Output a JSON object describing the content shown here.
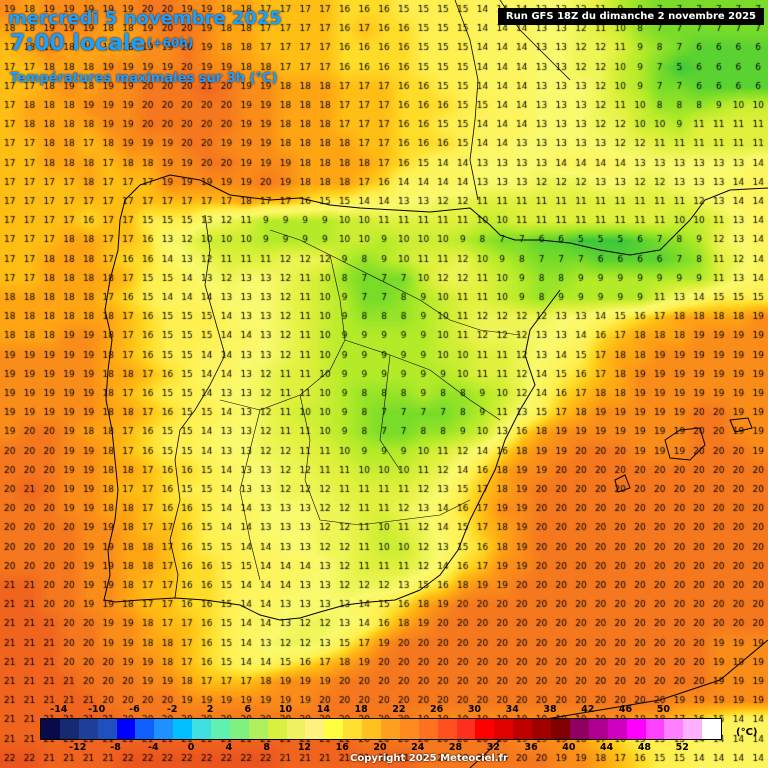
{
  "title": {
    "date": "mercredi 5 novembre 2025",
    "time": "7:00 locale",
    "lead": "(+60h)",
    "parameter": "Températures maximales sur 3h (°C)",
    "run": "Run GFS 18Z du dimanche 2 novembre 2025",
    "copyright": "Copyright 2025 Meteociel.fr"
  },
  "legend": {
    "unit": "(°C)",
    "top_labels": [
      "-14",
      "-10",
      "-6",
      "-2",
      "2",
      "6",
      "10",
      "14",
      "18",
      "22",
      "26",
      "30",
      "34",
      "38",
      "42",
      "46",
      "50"
    ],
    "bottom_labels": [
      "-12",
      "-8",
      "-4",
      "0",
      "4",
      "8",
      "12",
      "16",
      "20",
      "24",
      "28",
      "32",
      "36",
      "40",
      "44",
      "48",
      "52"
    ],
    "colors": [
      "#0a0a4a",
      "#152a70",
      "#1f3f9a",
      "#2050c0",
      "#0000ff",
      "#1060ff",
      "#1e90ff",
      "#00c0ff",
      "#40e0e0",
      "#60f0b0",
      "#80f080",
      "#b0f060",
      "#d8f040",
      "#f0f060",
      "#fff080",
      "#ffff40",
      "#ffe030",
      "#ffc020",
      "#ffa020",
      "#ff8a20",
      "#ff7020",
      "#ff5020",
      "#ff3020",
      "#ff0000",
      "#e00000",
      "#c00000",
      "#a00000",
      "#800000",
      "#900060",
      "#b00090",
      "#d000c0",
      "#ff00ff",
      "#ff40ff",
      "#ff80ff",
      "#ffb0ff",
      "#ffffff"
    ]
  },
  "map": {
    "columns": 39,
    "rows": [
      "19 18 19 19 19 19 19 20 20 19 19 18 18 17 17 17 17 16 16 16 15 15 15 15 14 14 14 13 13 12 11 9 8 7 7 7 7 7 7",
      "18 18 19 19 19 18 18 19 20 20 19 18 18 17 17 17 17 16 17 16 16 15 15 15 14 14 14 13 13 12 11 10 8 7 7 7 7 7 7",
      "17 18 19 18 18 18 18 19 19 20 19 18 18 17 17 17 17 16 16 16 16 15 15 15 14 14 14 13 13 12 12 11 9 8 7 6 6 6 6",
      "17 17 18 18 18 19 19 19 19 20 19 19 18 18 17 17 17 16 16 16 16 15 15 15 14 14 14 13 13 12 12 10 9 7 5 6 6 6 6",
      "17 17 18 19 18 19 19 20 20 20 21 20 19 19 18 18 18 17 17 17 16 16 15 15 14 14 14 13 13 13 12 10 9 7 7 6 6 6 6",
      "17 18 18 18 19 19 19 20 20 20 20 20 19 19 18 18 18 17 17 17 16 16 16 15 15 14 14 13 13 13 12 11 10 8 8 8 9 10 10",
      "17 18 18 18 18 19 19 20 20 20 20 20 19 19 18 18 18 17 17 17 16 16 15 15 14 14 14 13 13 13 12 12 10 10 9 11 11 11 11",
      "17 17 18 18 17 18 19 19 19 20 20 19 19 19 18 18 18 18 17 17 16 16 16 15 14 14 13 13 13 13 13 12 12 11 11 11 11 11 11",
      "17 17 18 18 18 17 18 18 19 19 20 20 19 19 19 18 18 18 18 17 16 15 14 14 13 13 13 13 14 14 14 14 13 13 13 13 13 13 14",
      "17 17 17 17 18 17 17 17 19 19 19 19 19 20 19 18 18 18 17 16 14 14 14 14 13 13 13 12 12 12 13 13 12 12 13 13 13 14 14",
      "17 17 17 17 17 17 17 17 17 17 17 17 18 17 17 16 15 15 14 14 13 13 12 12 11 11 11 11 11 11 11 11 11 11 11 12 13 14 14",
      "17 17 17 17 16 17 17 15 15 15 13 12 11 9 9 9 9 10 10 11 11 11 11 11 10 10 11 11 11 11 11 11 11 11 10 10 11 13 14",
      "17 17 17 18 18 17 17 16 13 12 10 10 10 9 9 9 9 10 10 9 10 10 10 9 8 7 7 6 6 5 5 5 6 7 8 9 12 13 14",
      "17 17 18 18 18 17 16 16 14 13 12 11 11 11 12 12 12 9 8 9 10 11 11 12 10 9 8 7 7 7 6 6 6 6 7 8 11 12 14",
      "17 17 18 18 18 18 17 15 15 14 13 12 13 13 12 11 10 8 7 7 7 10 12 12 11 10 9 8 8 9 9 9 9 9 9 9 11 13 14",
      "18 18 18 18 18 17 16 15 14 14 14 13 13 13 12 11 10 9 7 7 8 9 10 11 11 10 9 8 9 9 9 9 9 11 13 14 15 15 15",
      "18 18 18 18 18 18 17 16 15 15 15 14 13 13 12 11 10 9 8 8 8 9 10 11 12 12 12 12 13 13 14 15 16 17 18 18 18 18 19",
      "18 18 18 19 19 18 17 16 15 15 15 14 14 13 12 11 10 9 9 9 9 9 10 11 12 12 12 13 13 14 16 17 18 18 18 19 19 19 19",
      "19 19 19 19 19 18 17 16 15 15 14 14 13 13 12 11 10 9 9 9 9 9 10 10 11 11 12 13 14 15 17 18 18 19 19 19 19 19 19",
      "19 19 19 19 19 18 18 17 16 15 14 14 13 12 11 11 10 9 9 9 9 9 9 10 11 11 12 14 15 16 17 18 19 19 19 19 19 19 19",
      "19 19 19 19 19 18 17 16 15 15 14 13 13 12 11 11 10 9 8 8 8 9 8 8 9 10 12 14 16 17 18 18 19 19 19 19 19 19 19",
      "19 19 19 19 19 18 18 17 16 15 15 14 13 12 11 10 10 9 8 7 7 7 7 8 9 11 13 15 17 18 19 19 19 19 19 20 20 19 19",
      "19 20 20 19 18 18 17 16 15 15 14 13 13 12 11 11 10 9 8 7 7 8 8 9 10 13 16 18 19 19 19 19 19 19 19 20 20 19 19",
      "20 20 20 19 19 18 17 16 15 15 14 13 13 12 12 11 11 10 9 9 9 10 11 12 14 16 18 19 19 20 20 20 19 19 19 20 20 20 19",
      "20 20 20 19 19 18 18 17 16 16 15 14 13 13 12 12 11 11 10 10 10 11 12 14 16 18 19 19 20 20 20 20 20 20 20 20 20 20 20",
      "20 21 20 19 19 18 17 17 16 15 15 14 13 13 12 12 12 11 11 11 11 12 13 15 17 18 19 20 20 20 20 20 20 20 20 20 20 20 20",
      "20 20 20 19 19 18 18 17 16 16 15 14 14 13 13 13 12 12 11 11 12 13 14 16 17 19 19 20 20 20 20 20 20 20 20 20 20 20 20",
      "20 20 20 20 19 19 18 17 17 16 15 14 14 13 13 13 12 12 11 10 11 12 14 15 17 18 19 20 20 20 20 20 20 20 20 20 20 20 20",
      "20 20 20 20 19 19 18 18 17 16 15 15 14 14 13 13 12 12 11 10 10 12 13 15 16 18 19 20 20 20 20 20 20 20 20 20 20 20 20",
      "20 20 20 20 19 19 18 18 17 16 16 15 15 14 14 14 13 12 11 11 11 12 14 16 17 19 19 20 20 20 20 20 20 20 20 20 20 20 20",
      "21 21 20 20 19 19 18 17 17 16 16 15 14 14 14 13 13 12 12 12 13 15 16 18 19 19 20 20 20 20 20 20 20 20 20 20 20 20 20",
      "21 21 20 20 19 19 18 17 17 16 16 15 14 14 13 13 13 13 14 15 16 18 19 20 20 20 20 20 20 20 20 20 20 20 20 20 20 20 20",
      "21 21 21 20 20 19 19 18 17 17 16 15 14 14 13 12 12 13 14 16 18 19 20 20 20 20 20 20 20 20 20 20 20 20 20 20 20 20 20",
      "21 21 21 20 20 19 19 18 18 17 16 15 14 13 12 12 13 15 17 19 20 20 20 20 20 20 20 20 20 20 20 20 20 20 20 20 19 19 19",
      "21 21 21 20 20 20 19 19 18 17 16 15 14 14 15 16 17 18 19 20 20 20 20 20 20 20 20 20 20 20 20 20 20 20 20 20 19 19 19",
      "21 21 21 21 20 20 20 19 19 18 17 17 17 18 19 19 19 20 20 20 20 20 20 20 20 20 20 20 20 20 20 20 20 20 20 20 19 19 19",
      "21 21 21 21 21 20 20 20 20 19 19 19 19 19 19 19 20 20 20 20 20 20 20 20 20 20 20 20 20 20 20 20 20 20 19 19 19 19 19",
      "21 21 21 21 21 21 20 20 20 20 20 20 20 20 20 20 20 20 20 20 20 19 19 19 19 19 19 19 19 19 19 19 18 18 17 16 15 14 14",
      "21 21 21 21 21 21 21 21 21 21 21 21 21 21 21 21 21 21 20 20 20 20 20 20 20 20 19 19 19 18 17 16 15 15 15 14 14 14 14",
      "22 22 21 21 21 21 22 22 22 22 22 22 22 22 21 21 21 21 21 21 21 20 20 20 20 20 20 20 19 19 18 17 16 15 15 14 14 14 14"
    ]
  }
}
